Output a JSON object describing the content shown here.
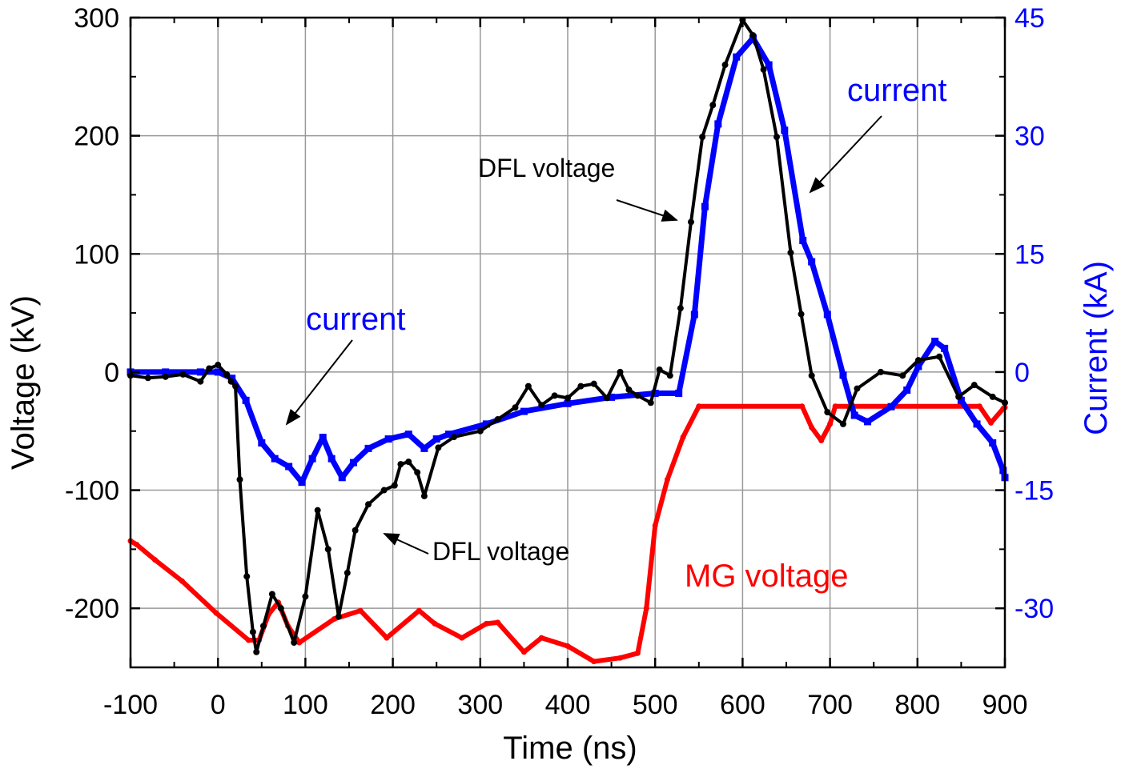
{
  "chart_data": {
    "type": "line",
    "xlabel": "Time (ns)",
    "ylabel": "Voltage (kV)",
    "y2label": "Current (kA)",
    "xlim": [
      -100,
      900
    ],
    "ylim": [
      -250,
      300
    ],
    "y2lim": [
      -37.5,
      45
    ],
    "x_ticks": [
      -100,
      0,
      100,
      200,
      300,
      400,
      500,
      600,
      700,
      800,
      900
    ],
    "y_ticks": [
      300,
      200,
      100,
      0,
      -100,
      -200
    ],
    "y2_ticks": [
      45,
      30,
      15,
      0,
      -15,
      -30
    ],
    "grid": true,
    "series": [
      {
        "name": "DFL voltage",
        "axis": "left",
        "color": "#000000",
        "x": [
          -100,
          -80,
          -60,
          -40,
          -20,
          -10,
          0,
          10,
          15,
          20,
          25,
          33,
          40,
          44,
          52,
          62,
          72,
          87,
          100,
          114,
          126,
          138,
          148,
          157,
          172,
          190,
          202,
          209,
          218,
          228,
          236,
          252,
          270,
          300,
          320,
          340,
          355,
          370,
          385,
          400,
          415,
          430,
          445,
          460,
          470,
          480,
          495,
          505,
          517,
          529,
          541,
          554,
          566,
          580,
          600,
          612,
          624,
          639,
          655,
          667,
          679,
          697,
          715,
          731,
          758,
          783,
          801,
          825,
          847,
          865,
          886,
          900
        ],
        "y": [
          -3,
          -5,
          -4,
          -2,
          -8,
          3,
          6,
          -2,
          -8,
          -12,
          -91,
          -173,
          -220,
          -237,
          -215,
          -188,
          -200,
          -229,
          -190,
          -117,
          -150,
          -207,
          -170,
          -134,
          -112,
          -100,
          -96,
          -78,
          -76,
          -85,
          -105,
          -64,
          -55,
          -50,
          -40,
          -30,
          -12,
          -28,
          -20,
          -22,
          -12,
          -10,
          -22,
          0,
          -15,
          -20,
          -26,
          2,
          -3,
          54,
          127,
          199,
          226,
          260,
          298,
          285,
          256,
          199,
          101,
          49,
          -3,
          -34,
          -44,
          -14,
          0,
          -3,
          10,
          13,
          -21,
          -11,
          -21,
          -26
        ]
      },
      {
        "name": "current",
        "axis": "right",
        "color": "#0000ff",
        "x": [
          -100,
          -60,
          -20,
          0,
          16,
          32,
          50,
          65,
          81,
          96,
          108,
          120,
          130,
          142,
          155,
          172,
          195,
          218,
          236,
          250,
          264,
          307,
          350,
          400,
          450,
          500,
          527,
          545,
          557,
          572,
          593,
          612,
          630,
          648,
          669,
          679,
          697,
          715,
          728,
          743,
          770,
          788,
          801,
          820,
          831,
          850,
          868,
          886,
          898,
          900
        ],
        "y": [
          0,
          0,
          0,
          0,
          -0.8,
          -3.6,
          -9,
          -11,
          -12,
          -14,
          -11,
          -8.3,
          -11,
          -13.4,
          -11.5,
          -9.7,
          -8.5,
          -7.9,
          -9.7,
          -8.5,
          -7.9,
          -6.6,
          -5,
          -4,
          -3.2,
          -2.7,
          -2.7,
          7.3,
          21,
          31.5,
          40,
          42.4,
          39,
          30.7,
          16.7,
          14,
          7.3,
          -0.4,
          -5.5,
          -6.3,
          -4.4,
          -2.3,
          0.7,
          3.9,
          3,
          -3.6,
          -6.6,
          -9,
          -12.5,
          -13.4
        ]
      },
      {
        "name": "MG voltage",
        "axis": "left",
        "color": "#ff0000",
        "x": [
          -100,
          -93,
          -72,
          -41,
          -2,
          35,
          47,
          58,
          69,
          80,
          93,
          133,
          163,
          193,
          230,
          248,
          279,
          307,
          320,
          350,
          370,
          400,
          430,
          460,
          480,
          490,
          500,
          514,
          532,
          550,
          668,
          679,
          690,
          700,
          706,
          871,
          884,
          898,
          900
        ],
        "y": [
          -143,
          -146,
          -159,
          -177,
          -204,
          -227,
          -227,
          -205,
          -195,
          -215,
          -229,
          -209,
          -202,
          -225,
          -202,
          -213,
          -225,
          -213,
          -212,
          -237,
          -225,
          -232,
          -245,
          -242,
          -238,
          -200,
          -130,
          -91,
          -55,
          -29,
          -29,
          -47,
          -58,
          -44,
          -29,
          -29,
          -43,
          -31,
          -30
        ]
      }
    ],
    "annotations": [
      {
        "text": "current",
        "color": "#0000ff"
      },
      {
        "text": "DFL voltage",
        "color": "#000000"
      },
      {
        "text": "DFL voltage",
        "color": "#000000"
      },
      {
        "text": "current",
        "color": "#0000ff"
      },
      {
        "text": "MG voltage",
        "color": "#ff0000"
      }
    ]
  }
}
